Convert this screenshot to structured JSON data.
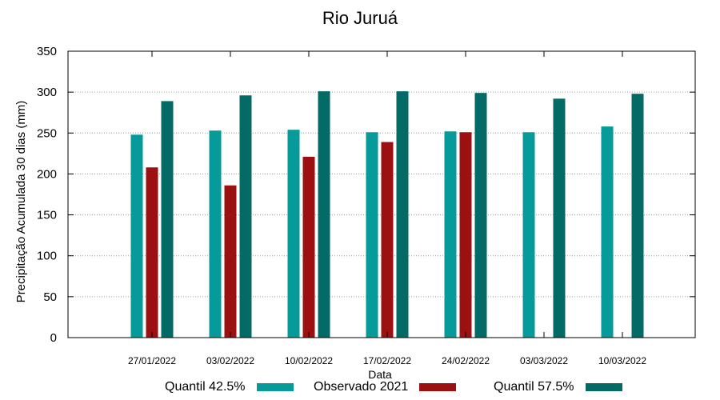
{
  "chart_data": {
    "type": "bar",
    "title": "Rio Juruá",
    "xlabel": "Data",
    "ylabel": "Precipitação Acumulada 30 dias (mm)",
    "ylim": [
      0,
      350
    ],
    "yticks": [
      0,
      50,
      100,
      150,
      200,
      250,
      300,
      350
    ],
    "grid": "horizontal-dotted",
    "legend_position": "bottom",
    "categories": [
      "27/01/2022",
      "03/02/2022",
      "10/02/2022",
      "17/02/2022",
      "24/02/2022",
      "03/03/2022",
      "10/03/2022"
    ],
    "series": [
      {
        "name": "Quantil 42.5%",
        "color": "#069a9a",
        "values": [
          248,
          253,
          254,
          251,
          252,
          251,
          258
        ]
      },
      {
        "name": "Observado 2021",
        "color": "#9b1010",
        "values": [
          208,
          186,
          221,
          239,
          251,
          null,
          null
        ]
      },
      {
        "name": "Quantil 57.5%",
        "color": "#046a66",
        "values": [
          289,
          296,
          301,
          301,
          299,
          292,
          298
        ]
      }
    ]
  }
}
